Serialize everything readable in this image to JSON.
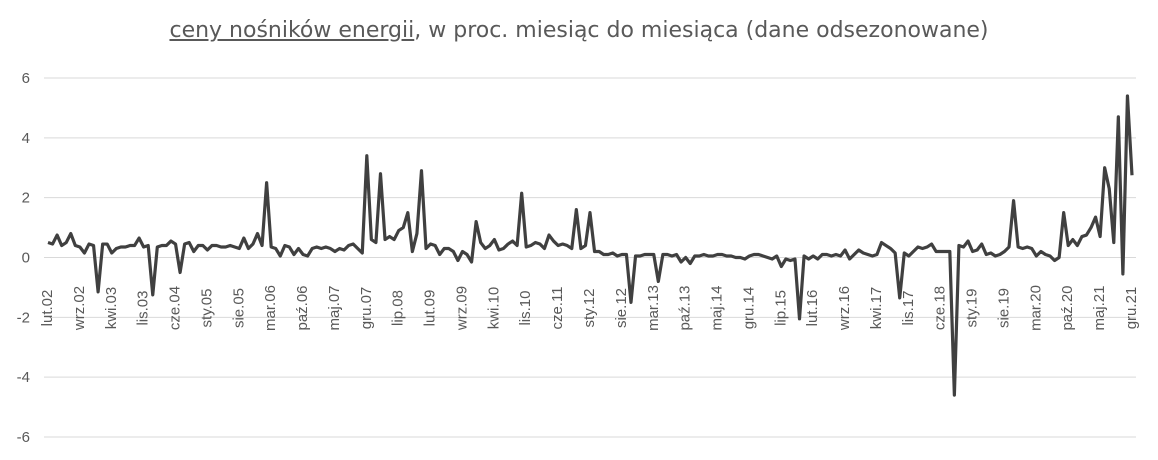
{
  "chart_data": {
    "type": "line",
    "title_underlined": "ceny nośników energii",
    "title_rest": ", w proc. miesiąc do miesiąca (dane odsezonowane)",
    "xlabel": "",
    "ylabel": "",
    "ylim": [
      -6,
      6
    ],
    "yticks": [
      "6",
      "4",
      "2",
      "0",
      "-2",
      "-4",
      "-6"
    ],
    "ytick_values": [
      6,
      4,
      2,
      0,
      -2,
      -4,
      -6
    ],
    "grid": true,
    "line_color": "#404040",
    "x_start": "2002-02",
    "x_tick_labels": [
      "lut.02",
      "wrz.02",
      "kwi.03",
      "lis.03",
      "cze.04",
      "sty.05",
      "sie.05",
      "mar.06",
      "paź.06",
      "maj.07",
      "gru.07",
      "lip.08",
      "lut.09",
      "wrz.09",
      "kwi.10",
      "lis.10",
      "cze.11",
      "sty.12",
      "sie.12",
      "mar.13",
      "paź.13",
      "maj.14",
      "gru.14",
      "lip.15",
      "lut.16",
      "wrz.16",
      "kwi.17",
      "lis.17",
      "cze.18",
      "sty.19",
      "sie.19",
      "mar.20",
      "paź.20",
      "maj.21",
      "gru.21"
    ],
    "values": [
      0.5,
      0.45,
      0.75,
      0.4,
      0.5,
      0.8,
      0.4,
      0.35,
      0.15,
      0.45,
      0.4,
      -1.15,
      0.45,
      0.45,
      0.15,
      0.3,
      0.35,
      0.35,
      0.4,
      0.4,
      0.65,
      0.35,
      0.4,
      -1.25,
      0.35,
      0.4,
      0.4,
      0.55,
      0.45,
      -0.5,
      0.45,
      0.5,
      0.2,
      0.4,
      0.4,
      0.25,
      0.4,
      0.4,
      0.35,
      0.35,
      0.4,
      0.35,
      0.3,
      0.65,
      0.3,
      0.45,
      0.8,
      0.4,
      2.5,
      0.35,
      0.3,
      0.05,
      0.4,
      0.35,
      0.1,
      0.3,
      0.1,
      0.05,
      0.3,
      0.35,
      0.3,
      0.35,
      0.3,
      0.2,
      0.3,
      0.25,
      0.4,
      0.45,
      0.3,
      0.15,
      3.4,
      0.6,
      0.5,
      2.8,
      0.6,
      0.7,
      0.6,
      0.9,
      1.0,
      1.5,
      0.2,
      0.8,
      2.9,
      0.3,
      0.45,
      0.4,
      0.1,
      0.3,
      0.3,
      0.2,
      -0.1,
      0.2,
      0.1,
      -0.15,
      1.2,
      0.5,
      0.3,
      0.4,
      0.6,
      0.25,
      0.3,
      0.45,
      0.55,
      0.4,
      2.15,
      0.35,
      0.4,
      0.5,
      0.45,
      0.3,
      0.75,
      0.55,
      0.4,
      0.45,
      0.4,
      0.3,
      1.6,
      0.3,
      0.4,
      1.5,
      0.2,
      0.2,
      0.1,
      0.1,
      0.15,
      0.05,
      0.1,
      0.1,
      -1.5,
      0.05,
      0.05,
      0.1,
      0.1,
      0.1,
      -0.8,
      0.1,
      0.1,
      0.05,
      0.1,
      -0.15,
      0.0,
      -0.2,
      0.05,
      0.05,
      0.1,
      0.05,
      0.05,
      0.1,
      0.1,
      0.05,
      0.05,
      0.0,
      0.0,
      -0.05,
      0.05,
      0.1,
      0.1,
      0.05,
      0.0,
      -0.05,
      0.05,
      -0.3,
      -0.05,
      -0.1,
      -0.05,
      -2.05,
      0.05,
      -0.05,
      0.05,
      -0.05,
      0.1,
      0.1,
      0.05,
      0.1,
      0.05,
      0.25,
      -0.05,
      0.1,
      0.25,
      0.15,
      0.1,
      0.05,
      0.1,
      0.5,
      0.4,
      0.3,
      0.15,
      -1.35,
      0.15,
      0.05,
      0.2,
      0.35,
      0.3,
      0.35,
      0.45,
      0.2,
      0.2,
      0.2,
      0.2,
      -4.6,
      0.4,
      0.35,
      0.55,
      0.2,
      0.25,
      0.45,
      0.1,
      0.15,
      0.05,
      0.1,
      0.2,
      0.35,
      1.9,
      0.35,
      0.3,
      0.35,
      0.3,
      0.05,
      0.2,
      0.1,
      0.05,
      -0.1,
      0.0,
      1.5,
      0.4,
      0.6,
      0.4,
      0.7,
      0.75,
      1.0,
      1.35,
      0.7,
      3.0,
      2.3,
      0.5,
      4.7,
      -0.55,
      5.4,
      2.75
    ]
  }
}
